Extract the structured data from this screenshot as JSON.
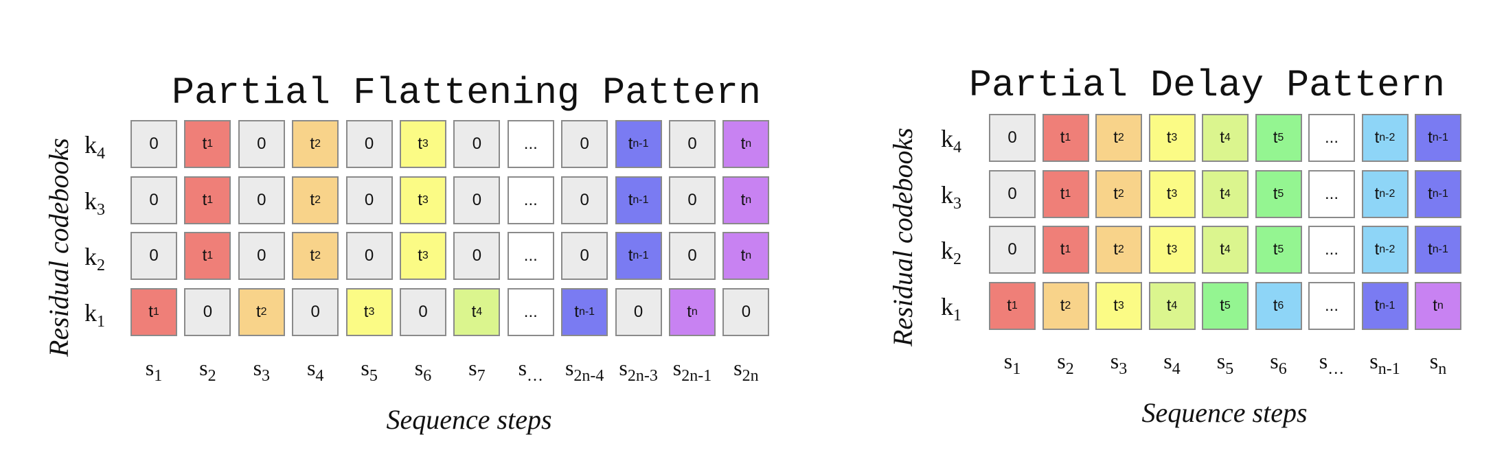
{
  "colors": {
    "zero": "#ebebeb",
    "ellipsis": "#ffffff",
    "t1": "#ef7f78",
    "t2": "#f8d38a",
    "t3": "#fbfb85",
    "t4": "#dbf58e",
    "t5": "#94f591",
    "t6": "#8ed5f7",
    "tn-2": "#8ed5f7",
    "tn-1": "#7a7bf2",
    "tn": "#c882f2"
  },
  "panels": [
    {
      "title": "Partial Flattening Pattern",
      "ylabel": "Residual codebooks",
      "xlabel": "Sequence steps",
      "rows": [
        {
          "base": "k",
          "sub": "4"
        },
        {
          "base": "k",
          "sub": "3"
        },
        {
          "base": "k",
          "sub": "2"
        },
        {
          "base": "k",
          "sub": "1"
        }
      ],
      "cols": [
        {
          "base": "s",
          "sub": "1"
        },
        {
          "base": "s",
          "sub": "2"
        },
        {
          "base": "s",
          "sub": "3"
        },
        {
          "base": "s",
          "sub": "4"
        },
        {
          "base": "s",
          "sub": "5"
        },
        {
          "base": "s",
          "sub": "6"
        },
        {
          "base": "s",
          "sub": "7"
        },
        {
          "base": "s",
          "sub": "…"
        },
        {
          "base": "s",
          "sub": "2n-4"
        },
        {
          "base": "s",
          "sub": "2n-3"
        },
        {
          "base": "s",
          "sub": "2n-1"
        },
        {
          "base": "s",
          "sub": "2n"
        }
      ],
      "cells": [
        [
          {
            "text": "0",
            "color": "zero"
          },
          {
            "base": "t",
            "sub": "1",
            "color": "t1"
          },
          {
            "text": "0",
            "color": "zero"
          },
          {
            "base": "t",
            "sub": "2",
            "color": "t2"
          },
          {
            "text": "0",
            "color": "zero"
          },
          {
            "base": "t",
            "sub": "3",
            "color": "t3"
          },
          {
            "text": "0",
            "color": "zero"
          },
          {
            "text": "...",
            "color": "ellipsis"
          },
          {
            "text": "0",
            "color": "zero"
          },
          {
            "base": "t",
            "sub": "n-1",
            "color": "tn-1"
          },
          {
            "text": "0",
            "color": "zero"
          },
          {
            "base": "t",
            "sub": "n",
            "color": "tn"
          }
        ],
        [
          {
            "text": "0",
            "color": "zero"
          },
          {
            "base": "t",
            "sub": "1",
            "color": "t1"
          },
          {
            "text": "0",
            "color": "zero"
          },
          {
            "base": "t",
            "sub": "2",
            "color": "t2"
          },
          {
            "text": "0",
            "color": "zero"
          },
          {
            "base": "t",
            "sub": "3",
            "color": "t3"
          },
          {
            "text": "0",
            "color": "zero"
          },
          {
            "text": "...",
            "color": "ellipsis"
          },
          {
            "text": "0",
            "color": "zero"
          },
          {
            "base": "t",
            "sub": "n-1",
            "color": "tn-1"
          },
          {
            "text": "0",
            "color": "zero"
          },
          {
            "base": "t",
            "sub": "n",
            "color": "tn"
          }
        ],
        [
          {
            "text": "0",
            "color": "zero"
          },
          {
            "base": "t",
            "sub": "1",
            "color": "t1"
          },
          {
            "text": "0",
            "color": "zero"
          },
          {
            "base": "t",
            "sub": "2",
            "color": "t2"
          },
          {
            "text": "0",
            "color": "zero"
          },
          {
            "base": "t",
            "sub": "3",
            "color": "t3"
          },
          {
            "text": "0",
            "color": "zero"
          },
          {
            "text": "...",
            "color": "ellipsis"
          },
          {
            "text": "0",
            "color": "zero"
          },
          {
            "base": "t",
            "sub": "n-1",
            "color": "tn-1"
          },
          {
            "text": "0",
            "color": "zero"
          },
          {
            "base": "t",
            "sub": "n",
            "color": "tn"
          }
        ],
        [
          {
            "base": "t",
            "sub": "1",
            "color": "t1"
          },
          {
            "text": "0",
            "color": "zero"
          },
          {
            "base": "t",
            "sub": "2",
            "color": "t2"
          },
          {
            "text": "0",
            "color": "zero"
          },
          {
            "base": "t",
            "sub": "3",
            "color": "t3"
          },
          {
            "text": "0",
            "color": "zero"
          },
          {
            "base": "t",
            "sub": "4",
            "color": "t4"
          },
          {
            "text": "...",
            "color": "ellipsis"
          },
          {
            "base": "t",
            "sub": "n-1",
            "color": "tn-1"
          },
          {
            "text": "0",
            "color": "zero"
          },
          {
            "base": "t",
            "sub": "n",
            "color": "tn"
          },
          {
            "text": "0",
            "color": "zero"
          }
        ]
      ]
    },
    {
      "title": "Partial Delay Pattern",
      "ylabel": "Residual codebooks",
      "xlabel": "Sequence steps",
      "rows": [
        {
          "base": "k",
          "sub": "4"
        },
        {
          "base": "k",
          "sub": "3"
        },
        {
          "base": "k",
          "sub": "2"
        },
        {
          "base": "k",
          "sub": "1"
        }
      ],
      "cols": [
        {
          "base": "s",
          "sub": "1"
        },
        {
          "base": "s",
          "sub": "2"
        },
        {
          "base": "s",
          "sub": "3"
        },
        {
          "base": "s",
          "sub": "4"
        },
        {
          "base": "s",
          "sub": "5"
        },
        {
          "base": "s",
          "sub": "6"
        },
        {
          "base": "s",
          "sub": "…"
        },
        {
          "base": "s",
          "sub": "n-1"
        },
        {
          "base": "s",
          "sub": "n"
        }
      ],
      "cells": [
        [
          {
            "text": "0",
            "color": "zero"
          },
          {
            "base": "t",
            "sub": "1",
            "color": "t1"
          },
          {
            "base": "t",
            "sub": "2",
            "color": "t2"
          },
          {
            "base": "t",
            "sub": "3",
            "color": "t3"
          },
          {
            "base": "t",
            "sub": "4",
            "color": "t4"
          },
          {
            "base": "t",
            "sub": "5",
            "color": "t5"
          },
          {
            "text": "...",
            "color": "ellipsis"
          },
          {
            "base": "t",
            "sub": "n-2",
            "color": "tn-2"
          },
          {
            "base": "t",
            "sub": "n-1",
            "color": "tn-1"
          }
        ],
        [
          {
            "text": "0",
            "color": "zero"
          },
          {
            "base": "t",
            "sub": "1",
            "color": "t1"
          },
          {
            "base": "t",
            "sub": "2",
            "color": "t2"
          },
          {
            "base": "t",
            "sub": "3",
            "color": "t3"
          },
          {
            "base": "t",
            "sub": "4",
            "color": "t4"
          },
          {
            "base": "t",
            "sub": "5",
            "color": "t5"
          },
          {
            "text": "...",
            "color": "ellipsis"
          },
          {
            "base": "t",
            "sub": "n-2",
            "color": "tn-2"
          },
          {
            "base": "t",
            "sub": "n-1",
            "color": "tn-1"
          }
        ],
        [
          {
            "text": "0",
            "color": "zero"
          },
          {
            "base": "t",
            "sub": "1",
            "color": "t1"
          },
          {
            "base": "t",
            "sub": "2",
            "color": "t2"
          },
          {
            "base": "t",
            "sub": "3",
            "color": "t3"
          },
          {
            "base": "t",
            "sub": "4",
            "color": "t4"
          },
          {
            "base": "t",
            "sub": "5",
            "color": "t5"
          },
          {
            "text": "...",
            "color": "ellipsis"
          },
          {
            "base": "t",
            "sub": "n-2",
            "color": "tn-2"
          },
          {
            "base": "t",
            "sub": "n-1",
            "color": "tn-1"
          }
        ],
        [
          {
            "base": "t",
            "sub": "1",
            "color": "t1"
          },
          {
            "base": "t",
            "sub": "2",
            "color": "t2"
          },
          {
            "base": "t",
            "sub": "3",
            "color": "t3"
          },
          {
            "base": "t",
            "sub": "4",
            "color": "t4"
          },
          {
            "base": "t",
            "sub": "5",
            "color": "t5"
          },
          {
            "base": "t",
            "sub": "6",
            "color": "t6"
          },
          {
            "text": "...",
            "color": "ellipsis"
          },
          {
            "base": "t",
            "sub": "n-1",
            "color": "tn-1"
          },
          {
            "base": "t",
            "sub": "n",
            "color": "tn"
          }
        ]
      ]
    }
  ]
}
